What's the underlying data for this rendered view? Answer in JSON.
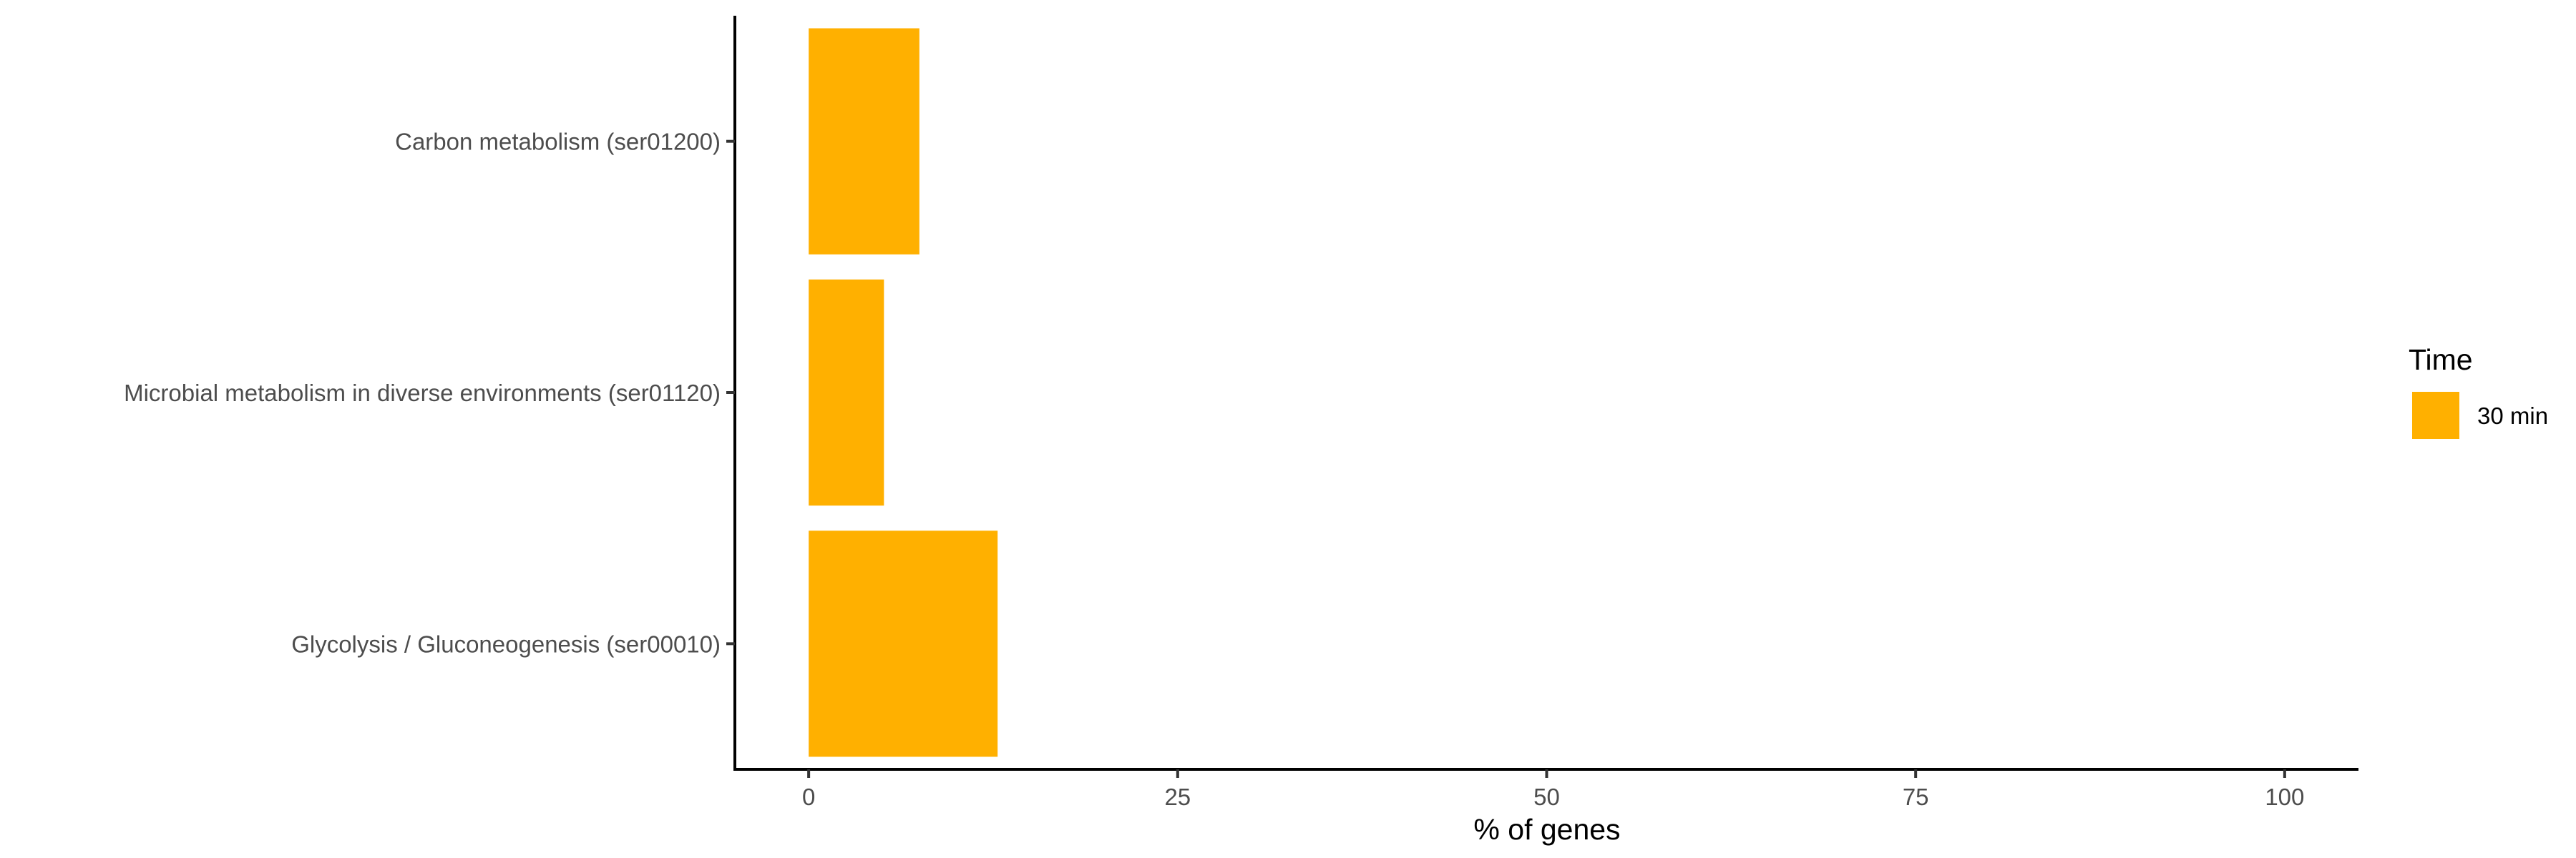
{
  "chart_data": {
    "type": "bar",
    "orientation": "horizontal",
    "categories": [
      "Carbon metabolism (ser01200)",
      "Microbial metabolism in diverse environments (ser01120)",
      "Glycolysis / Gluconeogenesis (ser00010)"
    ],
    "series": [
      {
        "name": "30 min",
        "color": "#FFB000",
        "values": [
          7.5,
          5.1,
          12.8
        ]
      }
    ],
    "xlabel": "% of genes",
    "ylabel": "",
    "xlim": [
      -5,
      105
    ],
    "x_ticks": [
      0,
      25,
      50,
      75,
      100
    ],
    "x_tick_labels": [
      "0",
      "25",
      "50",
      "75",
      "100"
    ],
    "grid": false,
    "legend": {
      "title": "Time",
      "position": "right"
    }
  }
}
